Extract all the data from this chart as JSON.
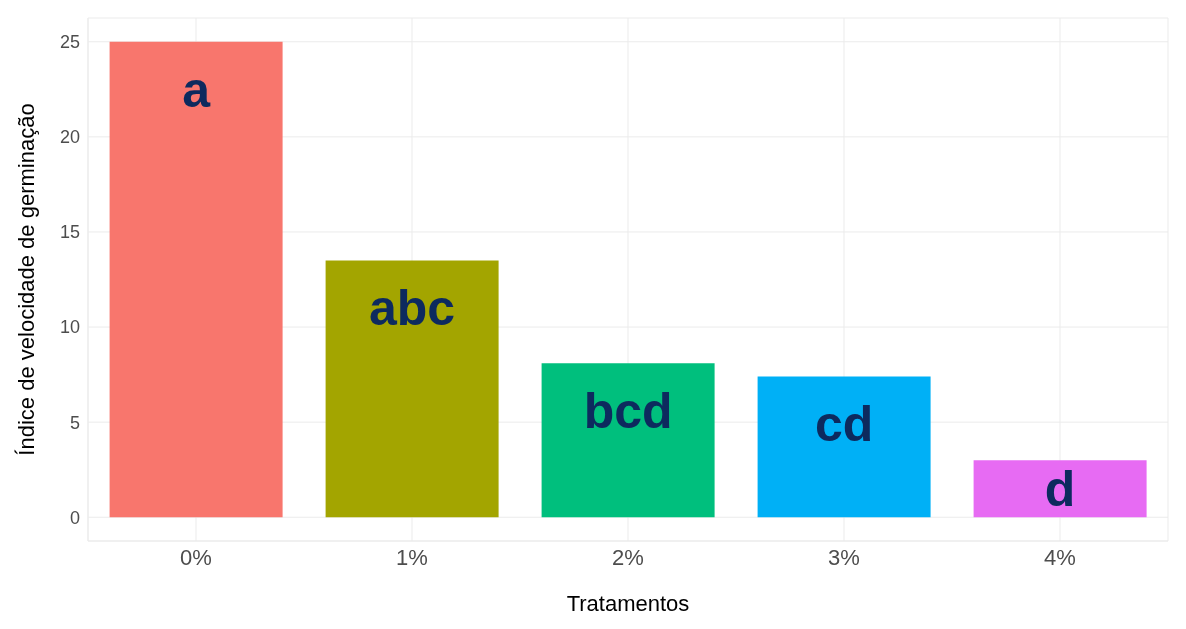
{
  "chart_data": {
    "type": "bar",
    "xlabel": "Tratamentos",
    "ylabel": "Índice de velocidade de germinação",
    "categories": [
      "0%",
      "1%",
      "2%",
      "3%",
      "4%"
    ],
    "values": [
      25.0,
      13.5,
      8.1,
      7.4,
      3.0
    ],
    "colors": [
      "#f8766d",
      "#a3a500",
      "#00bf7d",
      "#00b0f6",
      "#e76bf3"
    ],
    "ylim": [
      -1.25,
      26.25
    ],
    "yticks": [
      0,
      5,
      10,
      15,
      20,
      25
    ],
    "grid": true,
    "annotations": [
      "a",
      "abc",
      "bcd",
      "cd",
      "d"
    ]
  }
}
